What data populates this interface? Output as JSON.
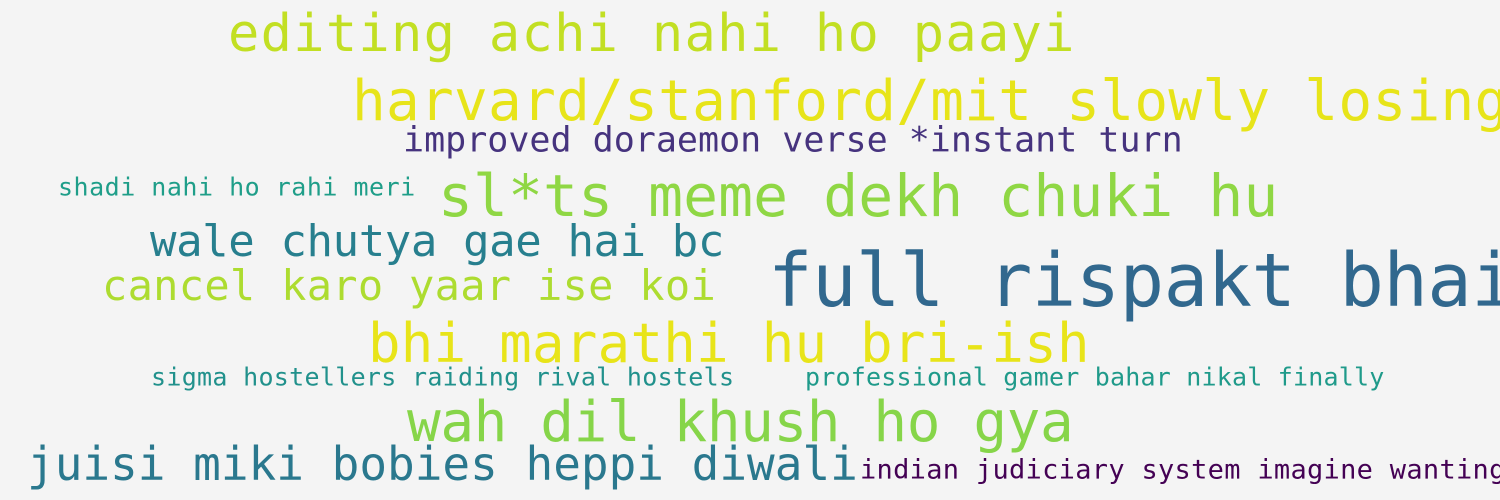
{
  "word_cloud": {
    "words": [
      {
        "text": "editing achi nahi ho paayi",
        "color": "#c2df23"
      },
      {
        "text": "harvard/stanford/mit slowly losing",
        "color": "#e7e419"
      },
      {
        "text": "improved doraemon verse *instant turn",
        "color": "#46337e"
      },
      {
        "text": "shadi nahi ho rahi meri",
        "color": "#1f9e89"
      },
      {
        "text": "sl*ts meme dekh chuki hu",
        "color": "#8fd744"
      },
      {
        "text": "wale chutya gae hai bc",
        "color": "#277f8e"
      },
      {
        "text": "full rispakt bhai",
        "color": "#31688e"
      },
      {
        "text": "cancel karo yaar ise koi",
        "color": "#addc30"
      },
      {
        "text": "bhi marathi hu bri-ish",
        "color": "#e8e419"
      },
      {
        "text": "sigma hostellers raiding rival hostels",
        "color": "#21918c"
      },
      {
        "text": "professional gamer bahar nikal finally",
        "color": "#1f9a8a"
      },
      {
        "text": "wah dil khush ho gya",
        "color": "#86d549"
      },
      {
        "text": "juisi miki bobies heppi diwali",
        "color": "#2a788e"
      },
      {
        "text": "indian judiciary system imagine wanting",
        "color": "#440154"
      }
    ]
  }
}
